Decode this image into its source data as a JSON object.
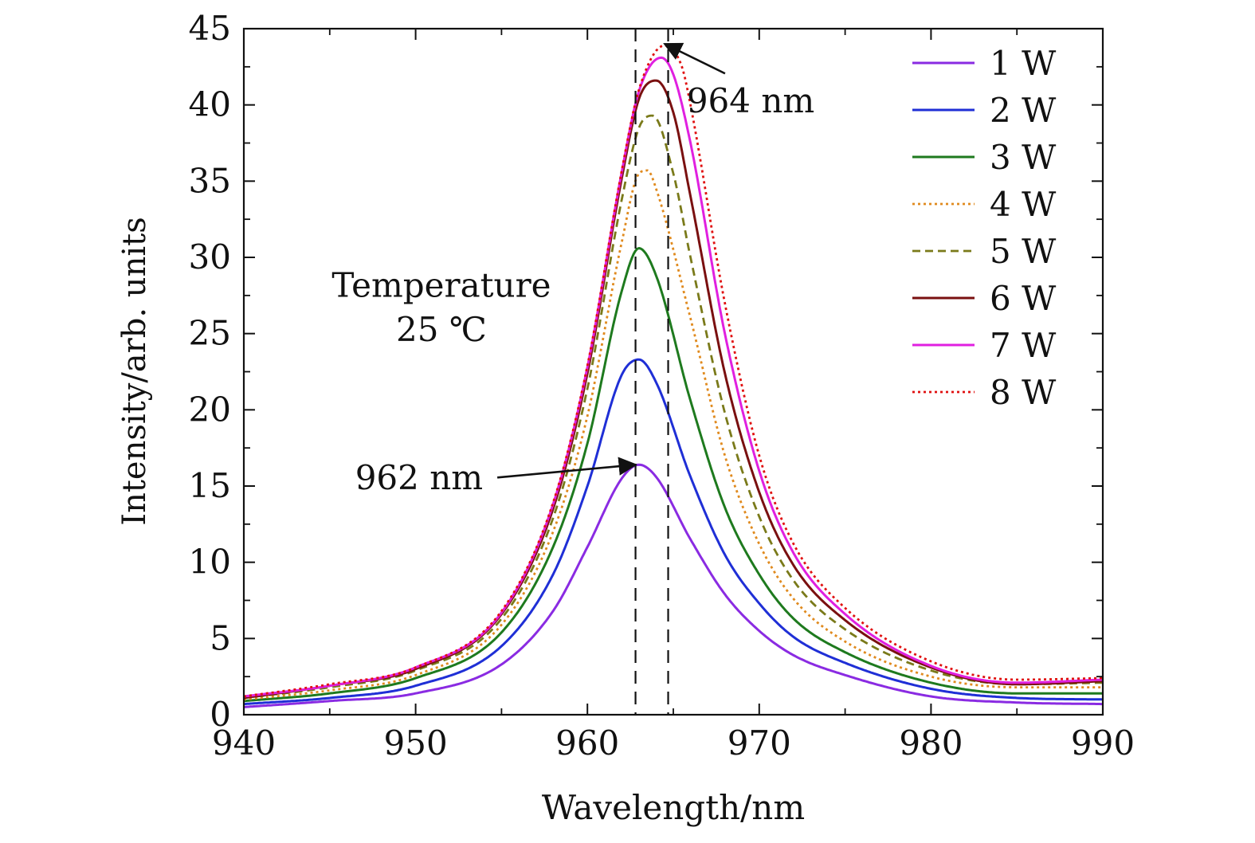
{
  "chart_data": {
    "type": "line",
    "xlabel": "Wavelength/nm",
    "ylabel": "Intensity/arb. units",
    "xlim": [
      940,
      990
    ],
    "ylim": [
      0,
      45
    ],
    "xticks": [
      940,
      950,
      960,
      970,
      980,
      990
    ],
    "yticks": [
      0,
      5,
      10,
      15,
      20,
      25,
      30,
      35,
      40,
      45
    ],
    "grid": false,
    "legend_position": "top-right",
    "series": [
      {
        "name": "1 W",
        "color": "#8a2be2",
        "style": "solid",
        "x": [
          940,
          945,
          950,
          955,
          958,
          960,
          962,
          963,
          964,
          966,
          968,
          970,
          972,
          975,
          980,
          985,
          990
        ],
        "y": [
          0.5,
          0.9,
          1.4,
          3.3,
          6.8,
          11.0,
          15.5,
          16.4,
          15.6,
          11.5,
          7.9,
          5.5,
          3.9,
          2.6,
          1.2,
          0.8,
          0.7
        ]
      },
      {
        "name": "2 W",
        "color": "#1f2fd6",
        "style": "solid",
        "x": [
          940,
          945,
          950,
          955,
          958,
          960,
          962,
          963,
          964,
          966,
          968,
          970,
          972,
          975,
          980,
          985,
          990
        ],
        "y": [
          0.7,
          1.1,
          1.9,
          4.5,
          9.2,
          15.0,
          22.3,
          23.3,
          21.8,
          15.6,
          10.5,
          7.3,
          5.1,
          3.4,
          1.7,
          1.1,
          1.0
        ]
      },
      {
        "name": "3 W",
        "color": "#1e7a1e",
        "style": "solid",
        "x": [
          940,
          945,
          950,
          955,
          958,
          960,
          962,
          963,
          964,
          966,
          968,
          970,
          972,
          975,
          980,
          985,
          990
        ],
        "y": [
          0.9,
          1.4,
          2.4,
          5.4,
          11.0,
          17.8,
          27.8,
          30.6,
          28.8,
          20.6,
          13.6,
          9.2,
          6.3,
          4.1,
          2.1,
          1.4,
          1.4
        ]
      },
      {
        "name": "4 W",
        "color": "#e08a1e",
        "style": "dotted",
        "x": [
          940,
          945,
          950,
          955,
          958,
          960,
          962,
          963,
          963.5,
          964,
          966,
          968,
          970,
          972,
          975,
          980,
          985,
          990
        ],
        "y": [
          1.0,
          1.6,
          2.6,
          5.9,
          12.0,
          19.6,
          31.0,
          35.5,
          35.7,
          34.5,
          26.0,
          17.0,
          11.2,
          7.6,
          4.8,
          2.5,
          1.8,
          1.8
        ]
      },
      {
        "name": "5 W",
        "color": "#7a7a1a",
        "style": "dashed",
        "x": [
          940,
          945,
          950,
          955,
          958,
          960,
          962,
          963,
          963.8,
          965,
          966,
          968,
          970,
          972,
          975,
          980,
          985,
          990
        ],
        "y": [
          1.1,
          1.8,
          2.9,
          6.3,
          12.9,
          21.4,
          33.8,
          38.5,
          39.3,
          35.5,
          30.0,
          19.8,
          13.0,
          8.8,
          5.6,
          2.9,
          2.0,
          2.1
        ]
      },
      {
        "name": "6 W",
        "color": "#7a1010",
        "style": "solid",
        "x": [
          940,
          945,
          950,
          955,
          958,
          960,
          962,
          963,
          964,
          965,
          966,
          968,
          970,
          972,
          975,
          980,
          985,
          990
        ],
        "y": [
          1.1,
          1.9,
          3.0,
          6.6,
          13.5,
          22.4,
          35.2,
          40.4,
          41.6,
          39.5,
          34.0,
          22.4,
          14.6,
          9.8,
          6.2,
          3.1,
          2.0,
          2.2
        ]
      },
      {
        "name": "7 W",
        "color": "#e020e0",
        "style": "solid",
        "x": [
          940,
          945,
          950,
          955,
          958,
          960,
          962,
          963,
          964.3,
          965,
          966,
          968,
          970,
          972,
          975,
          980,
          985,
          990
        ],
        "y": [
          1.2,
          1.9,
          3.1,
          6.7,
          13.8,
          22.8,
          35.6,
          40.9,
          43.1,
          42.0,
          37.5,
          25.0,
          16.0,
          10.6,
          6.6,
          3.2,
          2.1,
          2.3
        ]
      },
      {
        "name": "8 W",
        "color": "#e01010",
        "style": "dotted",
        "x": [
          940,
          945,
          950,
          955,
          958,
          960,
          962,
          963,
          964.5,
          965.5,
          966,
          968,
          970,
          972,
          975,
          980,
          985,
          990
        ],
        "y": [
          1.2,
          2.0,
          3.1,
          6.8,
          13.9,
          22.9,
          35.7,
          41.0,
          43.9,
          42.5,
          40.0,
          27.0,
          17.0,
          11.2,
          7.0,
          3.5,
          2.3,
          2.4
        ]
      }
    ],
    "reference_lines": [
      {
        "x": 962.8
      },
      {
        "x": 964.7
      }
    ],
    "annotations": [
      {
        "text": "964 nm",
        "x": 969.5,
        "y": 39.5,
        "arrow_to": [
          964.5,
          44.0
        ]
      },
      {
        "text": "962 nm",
        "x": 950.2,
        "y": 14.8,
        "arrow_to": [
          962.8,
          16.4
        ]
      },
      {
        "text": "Temperature",
        "x": 951.5,
        "y": 27.4
      },
      {
        "text": "25 ℃",
        "x": 951.5,
        "y": 24.5
      }
    ]
  }
}
